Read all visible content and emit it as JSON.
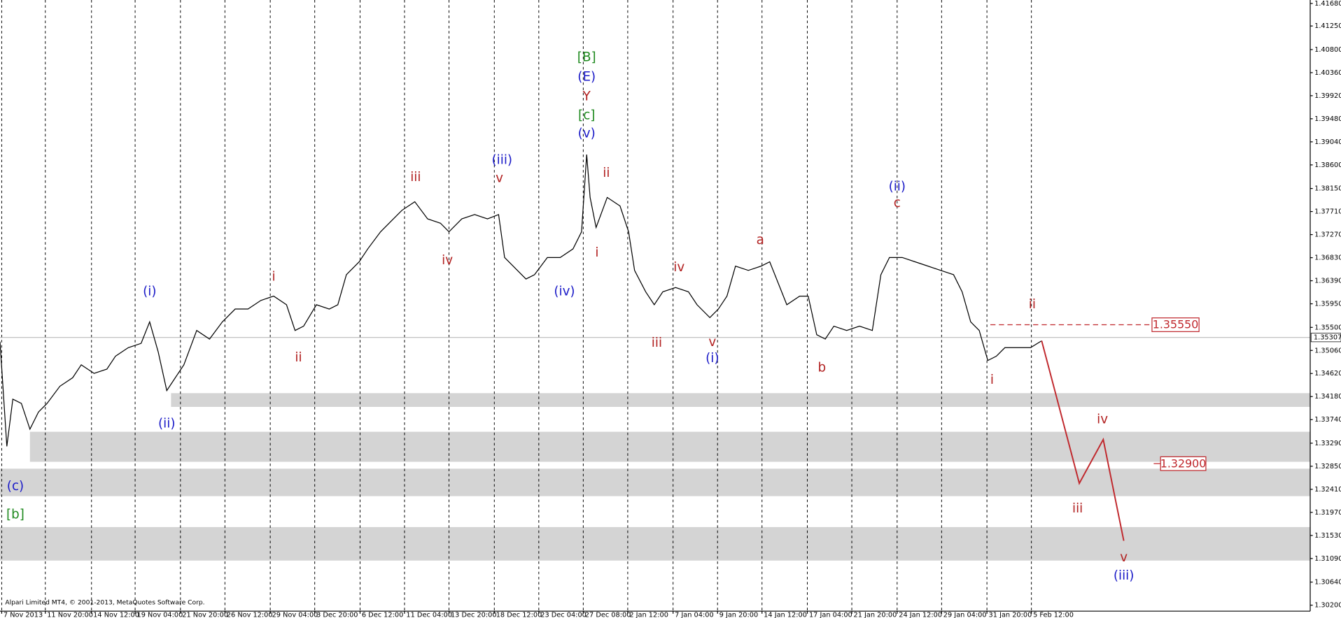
{
  "chart_data": {
    "type": "line",
    "copyright": "Alpari Limited MT4, © 2001-2013, MetaQuotes Software Corp.",
    "color": "#000000",
    "x": [
      0,
      2,
      3.75,
      6.25,
      8.75,
      11.25,
      13.75,
      17.5,
      21.25,
      23.75,
      27.5,
      31.25,
      33.75,
      37.5,
      41.25,
      43.75,
      46.25,
      48.75,
      51.25,
      53.75,
      57.5,
      61.25,
      65,
      68.75,
      72.5,
      76.25,
      80,
      83.75,
      86.25,
      88.75,
      92.5,
      96.25,
      98.75,
      101.25,
      105,
      107.5,
      111.25,
      115,
      117.5,
      121.25,
      125,
      128.75,
      131.25,
      135,
      138.75,
      142.5,
      145.75,
      147.5,
      151.25,
      153.75,
      156.25,
      160,
      163.75,
      167.5,
      170,
      171.5,
      172.5,
      174.25,
      177.5,
      181.25,
      183.75,
      185.5,
      188.75,
      191.25,
      193.75,
      197.5,
      201.25,
      203.75,
      207.5,
      210,
      212.5,
      215,
      218.75,
      222.5,
      225,
      227.5,
      230,
      233.75,
      236.25,
      238.75,
      241.25,
      243.75,
      247.5,
      251.25,
      255,
      257.5,
      260,
      263.75,
      267.5,
      271.25,
      275,
      278.75,
      281.25,
      283.75,
      286.25,
      288.75,
      291.25,
      293.75,
      297.5,
      301.25,
      304.5
    ],
    "values": [
      1.35228,
      1.3323,
      1.34131,
      1.34049,
      1.33557,
      1.33885,
      1.34049,
      1.34376,
      1.3454,
      1.34786,
      1.34622,
      1.34704,
      1.3495,
      1.35113,
      1.35195,
      1.35605,
      1.35031,
      1.34294,
      1.3454,
      1.34786,
      1.35441,
      1.35277,
      1.35605,
      1.3585,
      1.3585,
      1.36014,
      1.36096,
      1.35932,
      1.35441,
      1.35523,
      1.35932,
      1.3585,
      1.35932,
      1.36505,
      1.36751,
      1.36997,
      1.37324,
      1.3757,
      1.37734,
      1.37897,
      1.3757,
      1.37488,
      1.37324,
      1.3757,
      1.37652,
      1.3757,
      1.37652,
      1.36833,
      1.36587,
      1.36423,
      1.36505,
      1.36833,
      1.36833,
      1.36997,
      1.37324,
      1.38798,
      1.37979,
      1.37406,
      1.37979,
      1.37816,
      1.37324,
      1.36587,
      1.36178,
      1.35932,
      1.36178,
      1.3626,
      1.36178,
      1.35932,
      1.35687,
      1.3585,
      1.36096,
      1.36669,
      1.36587,
      1.36669,
      1.36751,
      1.36342,
      1.35932,
      1.36096,
      1.36096,
      1.35359,
      1.35277,
      1.35523,
      1.35441,
      1.35523,
      1.35441,
      1.36505,
      1.36833,
      1.36833,
      1.36751,
      1.36669,
      1.36587,
      1.36505,
      1.36178,
      1.35605,
      1.35441,
      1.34868,
      1.3495,
      1.35113,
      1.35113,
      1.35113,
      1.35244
    ],
    "xlim": [
      0,
      383
    ],
    "ylim": [
      1.30086,
      1.41746
    ],
    "grid": true,
    "xticks": [
      {
        "value": 0.5,
        "label": "7 Nov 2013"
      },
      {
        "value": 13.25,
        "label": "11 Nov 20:00"
      },
      {
        "value": 26.75,
        "label": "14 Nov 12:00"
      },
      {
        "value": 39.5,
        "label": "19 Nov 04:00"
      },
      {
        "value": 52.75,
        "label": "21 Nov 20:00"
      },
      {
        "value": 65.75,
        "label": "26 Nov 12:00"
      },
      {
        "value": 79,
        "label": "29 Nov 04:00"
      },
      {
        "value": 92,
        "label": "3 Dec 20:00"
      },
      {
        "value": 105.25,
        "label": "6 Dec 12:00"
      },
      {
        "value": 118.25,
        "label": "11 Dec 04:00"
      },
      {
        "value": 131.25,
        "label": "13 Dec 20:00"
      },
      {
        "value": 144.5,
        "label": "18 Dec 12:00"
      },
      {
        "value": 157.5,
        "label": "23 Dec 04:00"
      },
      {
        "value": 170.5,
        "label": "27 Dec 08:00"
      },
      {
        "value": 183.5,
        "label": "2 Jan 12:00"
      },
      {
        "value": 196.75,
        "label": "7 Jan 04:00"
      },
      {
        "value": 209.75,
        "label": "9 Jan 20:00"
      },
      {
        "value": 222.75,
        "label": "14 Jan 12:00"
      },
      {
        "value": 236,
        "label": "17 Jan 04:00"
      },
      {
        "value": 249,
        "label": "21 Jan 20:00"
      },
      {
        "value": 262.25,
        "label": "24 Jan 12:00"
      },
      {
        "value": 275.25,
        "label": "29 Jan 04:00"
      },
      {
        "value": 288.5,
        "label": "31 Jan 20:00"
      },
      {
        "value": 301.5,
        "label": "5 Feb 12:00"
      }
    ],
    "yticks": [
      {
        "value": 1.4168,
        "label": "1.41680"
      },
      {
        "value": 1.4125,
        "label": "1.41250"
      },
      {
        "value": 1.408,
        "label": "1.40800"
      },
      {
        "value": 1.4036,
        "label": "1.40360"
      },
      {
        "value": 1.3992,
        "label": "1.39920"
      },
      {
        "value": 1.3948,
        "label": "1.39480"
      },
      {
        "value": 1.3904,
        "label": "1.39040"
      },
      {
        "value": 1.386,
        "label": "1.38600"
      },
      {
        "value": 1.3815,
        "label": "1.38150"
      },
      {
        "value": 1.3771,
        "label": "1.37710"
      },
      {
        "value": 1.3727,
        "label": "1.37270"
      },
      {
        "value": 1.3683,
        "label": "1.36830"
      },
      {
        "value": 1.3639,
        "label": "1.36390"
      },
      {
        "value": 1.3595,
        "label": "1.35950"
      },
      {
        "value": 1.355,
        "label": "1.35500"
      },
      {
        "value": 1.3506,
        "label": "1.35060"
      },
      {
        "value": 1.3462,
        "label": "1.34620"
      },
      {
        "value": 1.3418,
        "label": "1.34180"
      },
      {
        "value": 1.3374,
        "label": "1.33740"
      },
      {
        "value": 1.3329,
        "label": "1.33290"
      },
      {
        "value": 1.3285,
        "label": "1.32850"
      },
      {
        "value": 1.3241,
        "label": "1.32410"
      },
      {
        "value": 1.3197,
        "label": "1.31970"
      },
      {
        "value": 1.3153,
        "label": "1.31530"
      },
      {
        "value": 1.3109,
        "label": "1.31090"
      },
      {
        "value": 1.3064,
        "label": "1.30640"
      },
      {
        "value": 1.302,
        "label": "1.30200"
      }
    ],
    "last_price": {
      "value": 1.35307,
      "label": "1.35307"
    },
    "levels": [
      {
        "value": 1.3555,
        "label": "1.35550",
        "from": 289.5
      },
      {
        "value": 1.329,
        "label": "1.32900"
      }
    ],
    "zones": [
      {
        "from": 50,
        "range": [
          1.33983,
          1.34245
        ]
      },
      {
        "from": 8.75,
        "range": [
          1.32935,
          1.33508
        ]
      },
      {
        "from": 0,
        "range": [
          1.3228,
          1.32804
        ]
      },
      {
        "from": 0,
        "range": [
          1.31051,
          1.3169
        ]
      }
    ],
    "projection": {
      "color": "#c0282d",
      "x": [
        304.5,
        315.5,
        322.5,
        328.5
      ],
      "values": [
        1.35244,
        1.32525,
        1.33361,
        1.31428
      ]
    },
    "annotations": [
      {
        "text": "(c)",
        "color": "#1c1cc8"
      },
      {
        "text": "[b]",
        "color": "#1f8a1f"
      },
      {
        "text": "(i)",
        "color": "#1c1cc8"
      },
      {
        "text": "(ii)",
        "color": "#1c1cc8"
      },
      {
        "text": "i",
        "color": "#b22222"
      },
      {
        "text": "ii",
        "color": "#b22222"
      },
      {
        "text": "iii",
        "color": "#b22222"
      },
      {
        "text": "iv",
        "color": "#b22222"
      },
      {
        "text": "v",
        "color": "#b22222"
      },
      {
        "text": "(iii)",
        "color": "#1c1cc8"
      },
      {
        "text": "(iv)",
        "color": "#1c1cc8"
      },
      {
        "text": "[B]",
        "color": "#1f8a1f"
      },
      {
        "text": "(E)",
        "color": "#1c1cc8"
      },
      {
        "text": "Y",
        "color": "#b22222"
      },
      {
        "text": "[c]",
        "color": "#1f8a1f"
      },
      {
        "text": "(v)",
        "color": "#1c1cc8"
      },
      {
        "text": "ii",
        "color": "#b22222"
      },
      {
        "text": "i",
        "color": "#b22222"
      },
      {
        "text": "iii",
        "color": "#b22222"
      },
      {
        "text": "iv",
        "color": "#b22222"
      },
      {
        "text": "v",
        "color": "#b22222"
      },
      {
        "text": "(i)",
        "color": "#1c1cc8"
      },
      {
        "text": "a",
        "color": "#b22222"
      },
      {
        "text": "b",
        "color": "#b22222"
      },
      {
        "text": "(ii)",
        "color": "#1c1cc8"
      },
      {
        "text": "c",
        "color": "#b22222"
      },
      {
        "text": "ii",
        "color": "#b22222"
      },
      {
        "text": "i",
        "color": "#b22222"
      },
      {
        "text": "iii",
        "color": "#b22222"
      },
      {
        "text": "iv",
        "color": "#b22222"
      },
      {
        "text": "v",
        "color": "#b22222"
      },
      {
        "text": "(iii)",
        "color": "#1c1cc8"
      }
    ]
  }
}
